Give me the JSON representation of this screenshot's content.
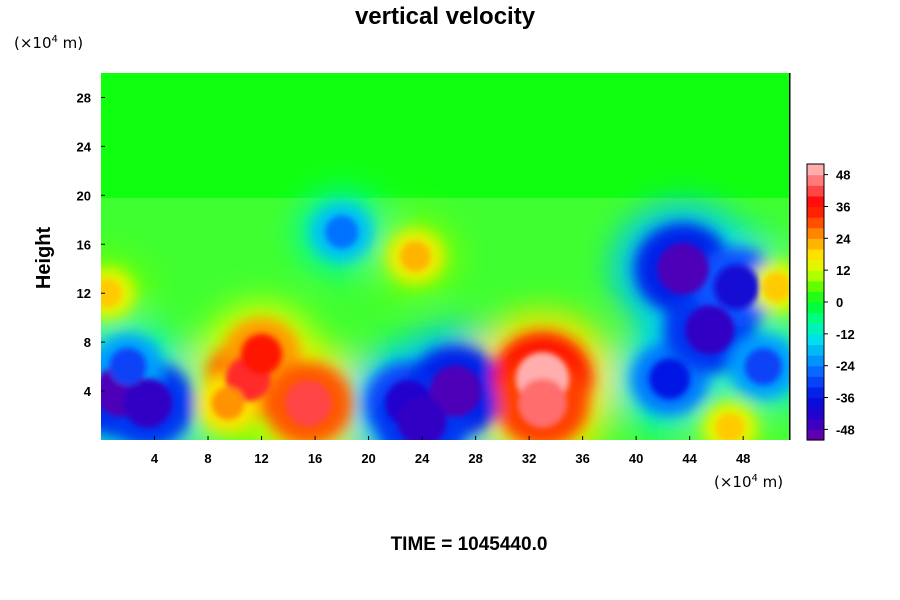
{
  "chart_data": {
    "type": "heatmap",
    "title": "vertical velocity",
    "ylabel": "Height",
    "y_unit": {
      "pre": "(×10",
      "exp": "4",
      "post": " m)"
    },
    "x_unit": {
      "pre": "(×10",
      "exp": "4",
      "post": " m)"
    },
    "xlim": [
      0,
      51.5
    ],
    "ylim": [
      0,
      30
    ],
    "x_ticks": [
      4,
      8,
      12,
      16,
      20,
      24,
      28,
      32,
      36,
      40,
      44,
      48
    ],
    "y_ticks": [
      4,
      8,
      12,
      16,
      20,
      24,
      28
    ],
    "x_tick_labels": [
      "4",
      "8",
      "12",
      "16",
      "20",
      "24",
      "28",
      "32",
      "36",
      "40",
      "44",
      "48"
    ],
    "y_tick_labels": [
      "4",
      "8",
      "12",
      "16",
      "20",
      "24",
      "28"
    ],
    "colorbar": {
      "range": [
        -52,
        52
      ],
      "ticks": [
        48,
        36,
        24,
        12,
        0,
        -12,
        -24,
        -36,
        -48
      ],
      "tick_labels": [
        "48",
        "36",
        "24",
        "12",
        "0",
        "-12",
        "-24",
        "-36",
        "-48"
      ],
      "colors": [
        [
          -52,
          "#6f00a8"
        ],
        [
          -44,
          "#2a00c8"
        ],
        [
          -36,
          "#0010e0"
        ],
        [
          -28,
          "#0a52ff"
        ],
        [
          -20,
          "#00a8ff"
        ],
        [
          -13,
          "#00e8e8"
        ],
        [
          -6,
          "#00ff80"
        ],
        [
          0,
          "#00ff20"
        ],
        [
          6,
          "#60ff00"
        ],
        [
          12,
          "#d8ff00"
        ],
        [
          18,
          "#ffe000"
        ],
        [
          24,
          "#ffa000"
        ],
        [
          30,
          "#ff5000"
        ],
        [
          37,
          "#ff0000"
        ],
        [
          44,
          "#ff6060"
        ],
        [
          52,
          "#ffc8c8"
        ]
      ]
    },
    "cells": [
      {
        "x": 1.5,
        "y": 4,
        "v": -48
      },
      {
        "x": 3.5,
        "y": 3,
        "v": -45
      },
      {
        "x": 2.0,
        "y": 6,
        "v": -30
      },
      {
        "x": 0.5,
        "y": 12,
        "v": 20
      },
      {
        "x": 11.0,
        "y": 5,
        "v": 40
      },
      {
        "x": 12.0,
        "y": 7,
        "v": 35
      },
      {
        "x": 15.5,
        "y": 3,
        "v": 42
      },
      {
        "x": 9.5,
        "y": 3,
        "v": 25
      },
      {
        "x": 18.0,
        "y": 17,
        "v": -25
      },
      {
        "x": 23.0,
        "y": 3,
        "v": -42
      },
      {
        "x": 26.5,
        "y": 4,
        "v": -48
      },
      {
        "x": 24.0,
        "y": 1.5,
        "v": -45
      },
      {
        "x": 23.5,
        "y": 15,
        "v": 22
      },
      {
        "x": 33.0,
        "y": 5,
        "v": 50
      },
      {
        "x": 33.0,
        "y": 3,
        "v": 45
      },
      {
        "x": 42.5,
        "y": 5,
        "v": -35
      },
      {
        "x": 43.5,
        "y": 14,
        "v": -48
      },
      {
        "x": 45.5,
        "y": 9,
        "v": -45
      },
      {
        "x": 47.5,
        "y": 12.5,
        "v": -40
      },
      {
        "x": 49.5,
        "y": 6,
        "v": -30
      },
      {
        "x": 50.5,
        "y": 12.5,
        "v": 20
      },
      {
        "x": 47.0,
        "y": 1,
        "v": 20
      }
    ]
  },
  "footer": {
    "time_label": "TIME = 1045440.0"
  }
}
